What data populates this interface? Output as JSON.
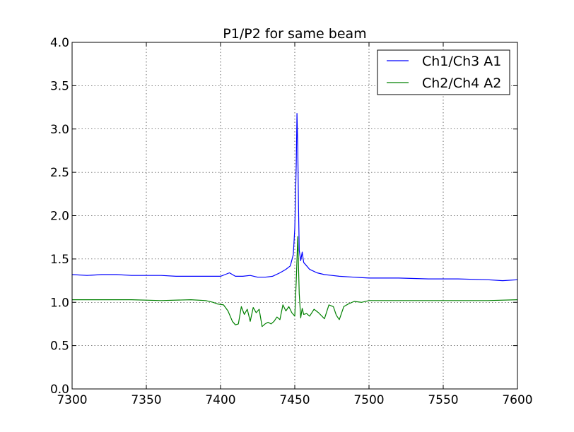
{
  "chart_data": {
    "type": "line",
    "title": "P1/P2 for same beam",
    "xlabel": "",
    "ylabel": "",
    "xlim": [
      7300,
      7600
    ],
    "ylim": [
      0.0,
      4.0
    ],
    "grid": true,
    "legend_position": "top-right",
    "x_ticks": [
      "7300",
      "7350",
      "7400",
      "7450",
      "7500",
      "7550",
      "7600"
    ],
    "y_ticks": [
      "0.0",
      "0.5",
      "1.0",
      "1.5",
      "2.0",
      "2.5",
      "3.0",
      "3.5",
      "4.0"
    ],
    "series": [
      {
        "name": "Ch1/Ch3 A1",
        "color": "#0000ff",
        "x": [
          7300,
          7310,
          7320,
          7330,
          7340,
          7350,
          7360,
          7370,
          7380,
          7390,
          7400,
          7403,
          7406,
          7410,
          7415,
          7420,
          7425,
          7430,
          7435,
          7440,
          7444,
          7447,
          7449,
          7450,
          7451,
          7451.5,
          7452,
          7452.5,
          7453,
          7454,
          7455,
          7456,
          7458,
          7460,
          7465,
          7470,
          7475,
          7480,
          7490,
          7500,
          7520,
          7540,
          7560,
          7580,
          7590,
          7600
        ],
        "y": [
          1.32,
          1.31,
          1.32,
          1.32,
          1.31,
          1.31,
          1.31,
          1.3,
          1.3,
          1.3,
          1.3,
          1.32,
          1.34,
          1.3,
          1.3,
          1.31,
          1.29,
          1.29,
          1.3,
          1.34,
          1.38,
          1.42,
          1.55,
          1.85,
          2.6,
          3.18,
          2.8,
          2.1,
          1.6,
          1.48,
          1.58,
          1.46,
          1.42,
          1.38,
          1.34,
          1.32,
          1.31,
          1.3,
          1.29,
          1.28,
          1.28,
          1.27,
          1.27,
          1.26,
          1.25,
          1.26
        ]
      },
      {
        "name": "Ch2/Ch4 A2",
        "color": "#008000",
        "x": [
          7300,
          7320,
          7340,
          7360,
          7380,
          7390,
          7395,
          7398,
          7402,
          7405,
          7408,
          7410,
          7412,
          7414,
          7416,
          7418,
          7420,
          7422,
          7424,
          7426,
          7428,
          7430,
          7432,
          7434,
          7436,
          7438,
          7440,
          7442,
          7444,
          7446,
          7448,
          7450,
          7451,
          7452,
          7453,
          7454,
          7455,
          7456,
          7458,
          7460,
          7463,
          7466,
          7470,
          7473,
          7476,
          7478,
          7480,
          7483,
          7486,
          7490,
          7495,
          7500,
          7520,
          7540,
          7560,
          7580,
          7600
        ],
        "y": [
          1.03,
          1.03,
          1.03,
          1.02,
          1.03,
          1.02,
          1.0,
          0.98,
          0.97,
          0.9,
          0.78,
          0.74,
          0.75,
          0.95,
          0.86,
          0.92,
          0.78,
          0.94,
          0.88,
          0.92,
          0.72,
          0.75,
          0.77,
          0.75,
          0.78,
          0.83,
          0.8,
          0.97,
          0.9,
          0.95,
          0.88,
          0.84,
          1.25,
          1.76,
          1.1,
          0.82,
          0.93,
          0.86,
          0.87,
          0.84,
          0.92,
          0.88,
          0.81,
          0.97,
          0.95,
          0.85,
          0.8,
          0.95,
          0.98,
          1.01,
          1.0,
          1.02,
          1.02,
          1.02,
          1.02,
          1.02,
          1.03
        ]
      }
    ]
  }
}
